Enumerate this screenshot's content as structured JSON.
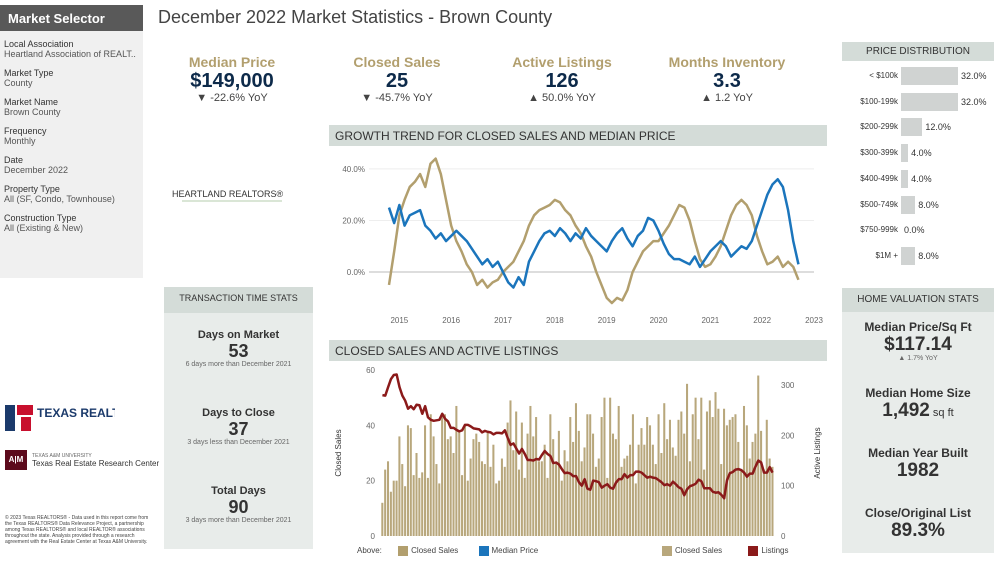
{
  "sidebar": {
    "title": "Market Selector",
    "filters": [
      {
        "label": "Local Association",
        "value": "Heartland Association of REALT.."
      },
      {
        "label": "Market Type",
        "value": "County"
      },
      {
        "label": "Market Name",
        "value": "Brown County"
      },
      {
        "label": "Frequency",
        "value": "Monthly"
      },
      {
        "label": "Date",
        "value": "December 2022"
      },
      {
        "label": "Property Type",
        "value": "All (SF, Condo, Townhouse)"
      },
      {
        "label": "Construction Type",
        "value": "All (Existing & New)"
      }
    ]
  },
  "header": {
    "title": "December 2022 Market Statistics - Brown County"
  },
  "kpis": [
    {
      "label": "Median Price",
      "value": "$149,000",
      "change": "▼ -22.6% YoY"
    },
    {
      "label": "Closed Sales",
      "value": "25",
      "change": "▼ -45.7% YoY"
    },
    {
      "label": "Active Listings",
      "value": "126",
      "change": "▲ 50.0% YoY"
    },
    {
      "label": "Months Inventory",
      "value": "3.3",
      "change": "▲ 1.2 YoY"
    }
  ],
  "logos": {
    "heartland": "HEARTLAND REALTORS®",
    "texas_realtors": "TEXAS REALTORS",
    "tamu_mark": "A|M",
    "tamu_small": "TEXAS A&M UNIVERSITY",
    "tamu_center": "Texas Real Estate Research Center"
  },
  "footer": "© 2023 Texas REALTORS® - Data used in this report come from the Texas REALTORS® Data Relevance Project, a partnership among Texas REALTORS® and local REALTOR® associations throughout the state. Analysis provided through a research agreement with the Real Estate Center at Texas A&M University.",
  "transaction": {
    "title": "TRANSACTION TIME STATS",
    "items": [
      {
        "label": "Days on Market",
        "value": "53",
        "sub": "6 days more than December 2021"
      },
      {
        "label": "Days to Close",
        "value": "37",
        "sub": "3 days less than December 2021"
      },
      {
        "label": "Total Days",
        "value": "90",
        "sub": "3 days more than December 2021"
      }
    ]
  },
  "price_distribution": {
    "title": "PRICE DISTRIBUTION",
    "rows": [
      {
        "label": "< $100k",
        "pct": 32.0,
        "text": "32.0%"
      },
      {
        "label": "$100-199k",
        "pct": 32.0,
        "text": "32.0%"
      },
      {
        "label": "$200-299k",
        "pct": 12.0,
        "text": "12.0%"
      },
      {
        "label": "$300-399k",
        "pct": 4.0,
        "text": "4.0%"
      },
      {
        "label": "$400-499k",
        "pct": 4.0,
        "text": "4.0%"
      },
      {
        "label": "$500-749k",
        "pct": 8.0,
        "text": "8.0%"
      },
      {
        "label": "$750-999k",
        "pct": 0.0,
        "text": "0.0%"
      },
      {
        "label": "$1M +",
        "pct": 8.0,
        "text": "8.0%"
      }
    ]
  },
  "home_valuation": {
    "title": "HOME VALUATION STATS",
    "items": [
      {
        "label": "Median Price/Sq Ft",
        "value": "$117.14",
        "unit": "",
        "sub": "▲ 1.7% YoY"
      },
      {
        "label": "Median Home Size",
        "value": "1,492",
        "unit": " sq ft",
        "sub": ""
      },
      {
        "label": "Median Year Built",
        "value": "1982",
        "unit": "",
        "sub": ""
      },
      {
        "label": "Close/Original List",
        "value": "89.3%",
        "unit": "",
        "sub": ""
      }
    ]
  },
  "legend": {
    "above": "Above:",
    "closed_sales": "Closed Sales",
    "median_price": "Median Price",
    "closed_sales2": "Closed Sales",
    "listings": "Listings"
  },
  "colors": {
    "gold": "#b29f6e",
    "blue": "#1b75bc",
    "red": "#8b1a1a",
    "bar": "#b8a77c"
  },
  "chart_data": [
    {
      "type": "line",
      "title": "GROWTH TREND FOR CLOSED SALES AND MEDIAN PRICE",
      "xlabel": "",
      "ylabel": "",
      "x_ticks": [
        "2015",
        "2016",
        "2017",
        "2018",
        "2019",
        "2020",
        "2021",
        "2022",
        "2023"
      ],
      "y_ticks": [
        "0.0%",
        "20.0%",
        "40.0%"
      ],
      "ylim": [
        -12,
        45
      ],
      "x_range": [
        2014.8,
        2023.0
      ],
      "series": [
        {
          "name": "Closed Sales",
          "color": "#b29f6e",
          "x": [
            2014.8,
            2014.9,
            2015.0,
            2015.1,
            2015.2,
            2015.3,
            2015.4,
            2015.5,
            2015.6,
            2015.7,
            2015.8,
            2015.9,
            2016.0,
            2016.1,
            2016.2,
            2016.3,
            2016.4,
            2016.5,
            2016.6,
            2016.7,
            2016.8,
            2016.9,
            2017.0,
            2017.1,
            2017.2,
            2017.3,
            2017.4,
            2017.5,
            2017.6,
            2017.7,
            2017.8,
            2017.9,
            2018.0,
            2018.1,
            2018.2,
            2018.3,
            2018.4,
            2018.5,
            2018.6,
            2018.7,
            2018.8,
            2018.9,
            2019.0,
            2019.1,
            2019.2,
            2019.3,
            2019.4,
            2019.5,
            2019.6,
            2019.7,
            2019.8,
            2019.9,
            2020.0,
            2020.1,
            2020.2,
            2020.3,
            2020.4,
            2020.5,
            2020.6,
            2020.7,
            2020.8,
            2020.9,
            2021.0,
            2021.1,
            2021.2,
            2021.3,
            2021.4,
            2021.5,
            2021.6,
            2021.7,
            2021.8,
            2021.9,
            2022.0,
            2022.1,
            2022.2,
            2022.3,
            2022.4,
            2022.5,
            2022.6,
            2022.7
          ],
          "y": [
            -5,
            8,
            22,
            28,
            33,
            35,
            38,
            33,
            42,
            44,
            38,
            28,
            18,
            12,
            8,
            3,
            0,
            -5,
            -3,
            -6,
            -4,
            -3,
            0,
            2,
            4,
            8,
            12,
            18,
            22,
            24,
            25,
            26,
            28,
            27,
            24,
            22,
            18,
            15,
            10,
            6,
            0,
            -5,
            -10,
            -12,
            -10,
            -11,
            -7,
            0,
            4,
            8,
            10,
            12,
            12,
            15,
            18,
            22,
            26,
            25,
            20,
            12,
            5,
            2,
            3,
            6,
            10,
            16,
            22,
            26,
            28,
            26,
            22,
            14,
            8,
            3,
            4,
            6,
            2,
            4,
            2,
            -3
          ]
        },
        {
          "name": "Median Price",
          "color": "#1b75bc",
          "x": [
            2014.8,
            2014.9,
            2015.0,
            2015.1,
            2015.2,
            2015.3,
            2015.4,
            2015.5,
            2015.6,
            2015.7,
            2015.8,
            2015.9,
            2016.0,
            2016.1,
            2016.2,
            2016.3,
            2016.4,
            2016.5,
            2016.6,
            2016.7,
            2016.8,
            2016.9,
            2017.0,
            2017.1,
            2017.2,
            2017.3,
            2017.4,
            2017.5,
            2017.6,
            2017.7,
            2017.8,
            2017.9,
            2018.0,
            2018.1,
            2018.2,
            2018.3,
            2018.4,
            2018.5,
            2018.6,
            2018.7,
            2018.8,
            2018.9,
            2019.0,
            2019.1,
            2019.2,
            2019.3,
            2019.4,
            2019.5,
            2019.6,
            2019.7,
            2019.8,
            2019.9,
            2020.0,
            2020.1,
            2020.2,
            2020.3,
            2020.4,
            2020.5,
            2020.6,
            2020.7,
            2020.8,
            2020.9,
            2021.0,
            2021.1,
            2021.2,
            2021.3,
            2021.4,
            2021.5,
            2021.6,
            2021.7,
            2021.8,
            2021.9,
            2022.0,
            2022.1,
            2022.2,
            2022.3,
            2022.4,
            2022.5,
            2022.6,
            2022.7
          ],
          "y": [
            25,
            19,
            26,
            18,
            22,
            23,
            24,
            18,
            16,
            13,
            15,
            12,
            14,
            16,
            14,
            12,
            9,
            6,
            3,
            5,
            2,
            4,
            0,
            -4,
            -6,
            -2,
            -5,
            4,
            8,
            12,
            15,
            16,
            14,
            17,
            15,
            12,
            15,
            13,
            17,
            14,
            12,
            10,
            8,
            12,
            15,
            17,
            13,
            10,
            14,
            16,
            21,
            20,
            16,
            11,
            7,
            5,
            5,
            4,
            3,
            6,
            2,
            5,
            8,
            10,
            12,
            10,
            6,
            8,
            10,
            9,
            12,
            18,
            24,
            30,
            34,
            36,
            33,
            24,
            12,
            3
          ]
        }
      ]
    },
    {
      "type": "bar",
      "title": "CLOSED SALES AND ACTIVE LISTINGS",
      "xlabel": "",
      "ylabel": "Closed Sales",
      "ylabel_right": "Active Listings",
      "y_ticks": [
        "0",
        "20",
        "40",
        "60"
      ],
      "y2_ticks": [
        "0",
        "100",
        "200",
        "300"
      ],
      "ylim": [
        0,
        60
      ],
      "y2lim": [
        0,
        330
      ],
      "series": [
        {
          "name": "Closed Sales",
          "color": "#b8a77c",
          "values": [
            12,
            24,
            27,
            16,
            20,
            20,
            36,
            26,
            18,
            40,
            39,
            22,
            30,
            21,
            23,
            40,
            21,
            44,
            36,
            26,
            19,
            44,
            44,
            35,
            36,
            30,
            47,
            38,
            22,
            40,
            20,
            28,
            35,
            37,
            34,
            27,
            26,
            38,
            25,
            33,
            19,
            20,
            28,
            25,
            41,
            49,
            31,
            45,
            24,
            41,
            21,
            37,
            47,
            36,
            43,
            27,
            27,
            33,
            21,
            44,
            35,
            26,
            38,
            20,
            31,
            27,
            43,
            34,
            48,
            38,
            27,
            32,
            44,
            44,
            37,
            25,
            28,
            43,
            50,
            21,
            50,
            37,
            35,
            47,
            25,
            28,
            29,
            33,
            44,
            19,
            33,
            39,
            33,
            43,
            40,
            33,
            26,
            44,
            30,
            48,
            35,
            42,
            32,
            29,
            42,
            45,
            37,
            55,
            27,
            44,
            50,
            35,
            50,
            24,
            45,
            49,
            43,
            52,
            46,
            26,
            46,
            40,
            42,
            43,
            44,
            34,
            24,
            47,
            40,
            28,
            34,
            37,
            58,
            38,
            24,
            42,
            28,
            25
          ]
        },
        {
          "name": "Listings",
          "color": "#8b1a1a",
          "values": [
            280,
            279,
            296,
            312,
            320,
            321,
            296,
            279,
            269,
            253,
            258,
            252,
            261,
            260,
            243,
            258,
            236,
            231,
            229,
            230,
            231,
            243,
            233,
            228,
            215,
            215,
            211,
            208,
            210,
            221,
            221,
            218,
            214,
            213,
            212,
            206,
            209,
            207,
            206,
            202,
            205,
            205,
            204,
            210,
            195,
            181,
            184,
            174,
            164,
            173,
            163,
            151,
            151,
            150,
            153,
            152,
            161,
            169,
            163,
            159,
            145,
            146,
            142,
            133,
            125,
            126,
            124,
            119,
            119,
            107,
            100,
            113,
            94,
            92,
            110,
            109,
            107,
            96,
            100,
            103,
            96,
            94,
            106,
            113,
            113,
            123,
            116,
            121,
            121,
            128,
            128,
            126,
            121,
            116,
            118,
            116,
            115,
            111,
            107,
            101,
            103,
            100,
            108,
            103,
            97,
            94,
            81,
            93,
            99,
            101,
            104,
            112,
            109,
            95,
            95,
            95,
            88,
            86,
            87,
            82,
            75,
            111,
            125,
            127,
            132,
            133,
            131,
            126,
            118,
            124,
            124,
            138,
            150,
            146,
            126,
            126,
            137,
            126
          ]
        }
      ]
    }
  ]
}
